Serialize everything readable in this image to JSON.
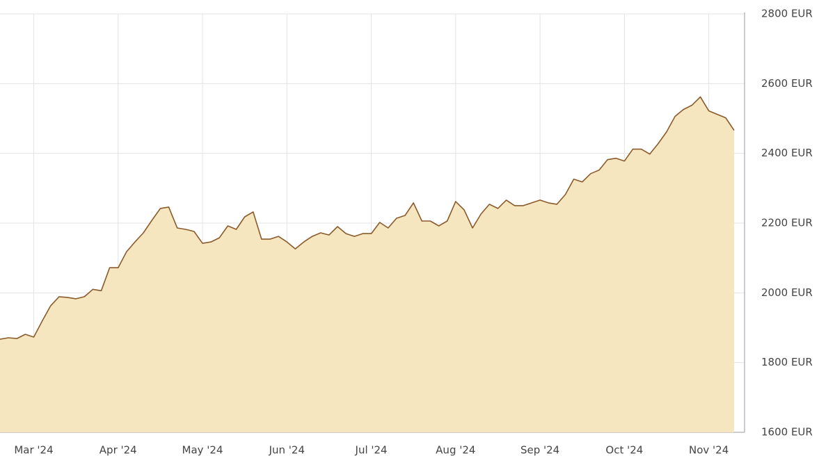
{
  "chart_data": {
    "type": "area",
    "categories": [
      null,
      null,
      null,
      null,
      "Mar '24",
      null,
      null,
      null,
      null,
      null,
      null,
      null,
      null,
      null,
      "Apr '24",
      null,
      null,
      null,
      null,
      null,
      null,
      null,
      null,
      null,
      "May '24",
      null,
      null,
      null,
      null,
      null,
      null,
      null,
      null,
      null,
      "Jun '24",
      null,
      null,
      null,
      null,
      null,
      null,
      null,
      null,
      null,
      "Jul '24",
      null,
      null,
      null,
      null,
      null,
      null,
      null,
      null,
      null,
      "Aug '24",
      null,
      null,
      null,
      null,
      null,
      null,
      null,
      null,
      null,
      "Sep '24",
      null,
      null,
      null,
      null,
      null,
      null,
      null,
      null,
      null,
      "Oct '24",
      null,
      null,
      null,
      null,
      null,
      null,
      null,
      null,
      null,
      "Nov '24",
      null,
      null,
      null
    ],
    "series": [
      {
        "color": "#8b5a2b",
        "fill": "#f5e6bf",
        "values": [
          1867,
          1871,
          1869,
          1881,
          1873,
          1919,
          1963,
          1989,
          1987,
          1983,
          1989,
          2010,
          2006,
          2072,
          2072,
          2118,
          2146,
          2172,
          2208,
          2242,
          2246,
          2186,
          2182,
          2176,
          2142,
          2146,
          2158,
          2192,
          2182,
          2218,
          2232,
          2154,
          2154,
          2162,
          2146,
          2126,
          2146,
          2162,
          2172,
          2166,
          2190,
          2170,
          2162,
          2170,
          2170,
          2202,
          2186,
          2214,
          2222,
          2258,
          2206,
          2206,
          2192,
          2206,
          2262,
          2238,
          2186,
          2226,
          2254,
          2242,
          2266,
          2250,
          2250,
          2258,
          2266,
          2258,
          2254,
          2282,
          2326,
          2318,
          2342,
          2352,
          2382,
          2386,
          2378,
          2412,
          2412,
          2398,
          2428,
          2462,
          2506,
          2526,
          2538,
          2562,
          2522,
          2512,
          2502,
          2466
        ]
      }
    ],
    "ylim": [
      1600,
      2800
    ],
    "yticks": [
      {
        "value": 1600,
        "label": "1600 EUR"
      },
      {
        "value": 1800,
        "label": "1800 EUR"
      },
      {
        "value": 2000,
        "label": "2000 EUR"
      },
      {
        "value": 2200,
        "label": "2200 EUR"
      },
      {
        "value": 2400,
        "label": "2400 EUR"
      },
      {
        "value": 2600,
        "label": "2600 EUR"
      },
      {
        "value": 2800,
        "label": "2800 EUR"
      }
    ],
    "grid": true
  }
}
